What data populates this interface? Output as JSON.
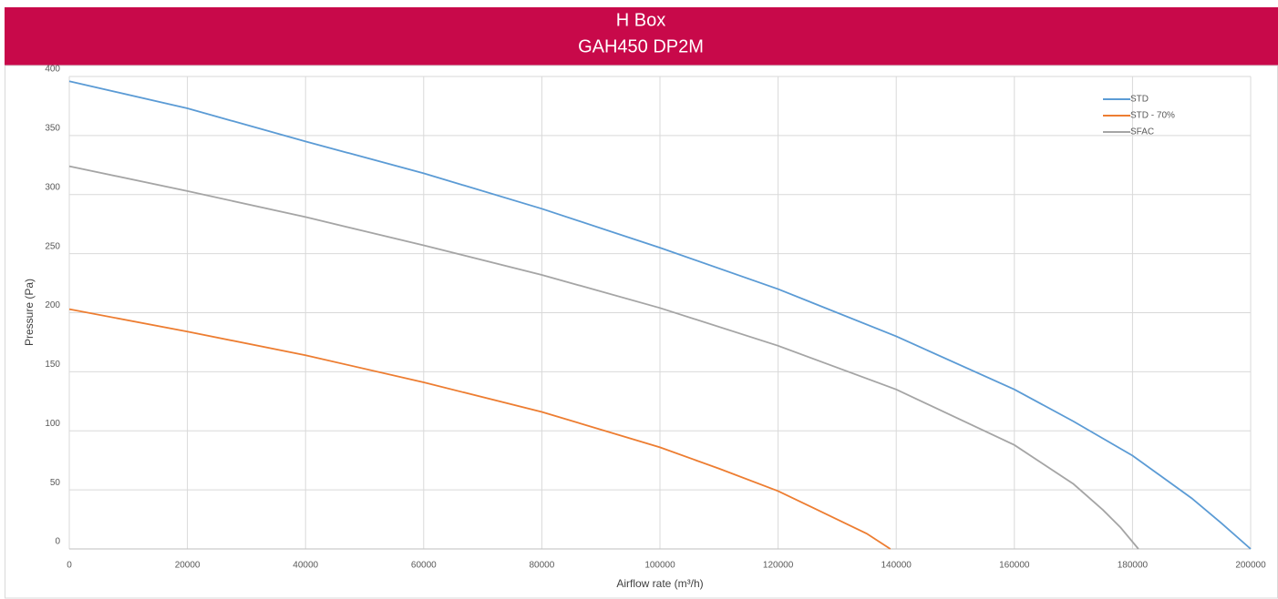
{
  "chart_data": {
    "type": "line",
    "title": "H Box",
    "subtitle": "GAH450 DP2M",
    "x_label": "Airflow rate (m³/h)",
    "y_label": "Pressure (Pa)",
    "xlim": [
      0,
      200000
    ],
    "xticks": [
      0,
      20000,
      40000,
      60000,
      80000,
      100000,
      120000,
      140000,
      160000,
      180000,
      200000
    ],
    "ylim": [
      0,
      400
    ],
    "yticks": [
      0,
      50,
      100,
      150,
      200,
      250,
      300,
      350,
      400
    ],
    "grid": true,
    "legend": "upper right",
    "header_color": "#c8094a",
    "series": [
      {
        "name": "STD",
        "color": "#5b9bd5",
        "x": [
          0,
          20000,
          40000,
          60000,
          80000,
          100000,
          120000,
          140000,
          160000,
          170000,
          180000,
          190000,
          195000,
          200000
        ],
        "values": [
          396,
          373,
          345,
          318,
          288,
          255,
          220,
          180,
          135,
          108,
          79,
          43,
          22,
          0
        ]
      },
      {
        "name": "STD - 70%",
        "color": "#ed7d31",
        "x": [
          0,
          20000,
          40000,
          60000,
          80000,
          100000,
          110000,
          120000,
          130000,
          135000,
          139000
        ],
        "values": [
          203,
          184,
          164,
          141,
          116,
          86,
          68,
          49,
          25,
          13,
          0
        ]
      },
      {
        "name": "SFAC",
        "color": "#a5a5a5",
        "x": [
          0,
          20000,
          40000,
          60000,
          80000,
          100000,
          120000,
          140000,
          160000,
          170000,
          175000,
          178000,
          181000
        ],
        "values": [
          324,
          303,
          281,
          257,
          232,
          204,
          172,
          135,
          88,
          55,
          33,
          18,
          0
        ]
      }
    ]
  }
}
